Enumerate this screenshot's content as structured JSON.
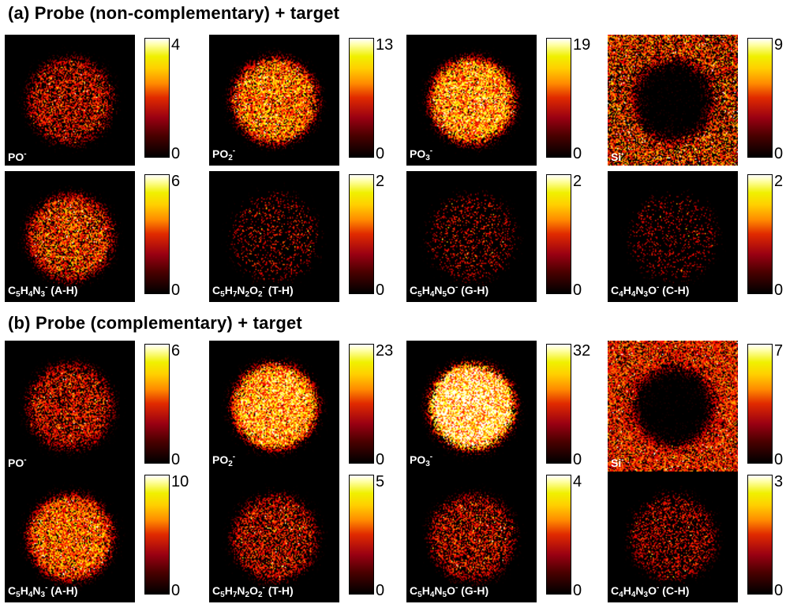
{
  "sections": [
    {
      "title": "(a) Probe (non-complementary) + target",
      "rows": [
        [
          {
            "label_html": "PO<sup>-</sup>",
            "max": "4",
            "min": "0",
            "pattern": "disk",
            "intensity": 0.45,
            "density": 0.55
          },
          {
            "label_html": "PO<sub>2</sub><sup>-</sup>",
            "max": "13",
            "min": "0",
            "pattern": "disk",
            "intensity": 0.65,
            "density": 0.85
          },
          {
            "label_html": "PO<sub>3</sub><sup>-</sup>",
            "max": "19",
            "min": "0",
            "pattern": "disk",
            "intensity": 0.72,
            "density": 0.92
          },
          {
            "label_html": "Si<sup>-</sup>",
            "max": "9",
            "min": "0",
            "pattern": "ring",
            "intensity": 0.55,
            "density": 0.6
          }
        ],
        [
          {
            "label_html": "C<sub>5</sub>H<sub>4</sub>N<sub>3</sub><sup>-</sup> (A-H)",
            "max": "6",
            "min": "0",
            "pattern": "disk",
            "intensity": 0.55,
            "density": 0.7
          },
          {
            "label_html": "C<sub>5</sub>H<sub>7</sub>N<sub>2</sub>O<sub>2</sub><sup>-</sup> (T-H)",
            "max": "2",
            "min": "0",
            "pattern": "disk",
            "intensity": 0.4,
            "density": 0.18
          },
          {
            "label_html": "C<sub>5</sub>H<sub>4</sub>N<sub>5</sub>O<sup>-</sup> (G-H)",
            "max": "2",
            "min": "0",
            "pattern": "disk",
            "intensity": 0.4,
            "density": 0.2
          },
          {
            "label_html": "C<sub>4</sub>H<sub>4</sub>N<sub>3</sub>O<sup>-</sup> (C-H)",
            "max": "2",
            "min": "0",
            "pattern": "disk",
            "intensity": 0.35,
            "density": 0.14
          }
        ]
      ]
    },
    {
      "title": "(b) Probe (complementary) + target",
      "rows": [
        [
          {
            "label_html": "PO<sup>-</sup>",
            "max": "6",
            "min": "0",
            "pattern": "disk",
            "intensity": 0.45,
            "density": 0.6
          },
          {
            "label_html": "PO<sub>2</sub><sup>-</sup>",
            "max": "23",
            "min": "0",
            "pattern": "disk",
            "intensity": 0.75,
            "density": 0.95
          },
          {
            "label_html": "PO<sub>3</sub><sup>-</sup>",
            "max": "32",
            "min": "0",
            "pattern": "disk",
            "intensity": 0.95,
            "density": 1.0
          },
          {
            "label_html": "Si<sup>-</sup>",
            "max": "7",
            "min": "0",
            "pattern": "ring",
            "intensity": 0.5,
            "density": 0.75
          }
        ],
        [
          {
            "label_html": "C<sub>5</sub>H<sub>4</sub>N<sub>3</sub><sup>-</sup> (A-H)",
            "max": "10",
            "min": "0",
            "pattern": "disk",
            "intensity": 0.6,
            "density": 0.85
          },
          {
            "label_html": "C<sub>5</sub>H<sub>7</sub>N<sub>2</sub>O<sub>2</sub><sup>-</sup> (T-H)",
            "max": "5",
            "min": "0",
            "pattern": "disk",
            "intensity": 0.45,
            "density": 0.55
          },
          {
            "label_html": "C<sub>5</sub>H<sub>4</sub>N<sub>5</sub>O<sup>-</sup> (G-H)",
            "max": "4",
            "min": "0",
            "pattern": "disk",
            "intensity": 0.45,
            "density": 0.5
          },
          {
            "label_html": "C<sub>4</sub>H<sub>4</sub>N<sub>3</sub>O<sup>-</sup> (C-H)",
            "max": "3",
            "min": "0",
            "pattern": "disk",
            "intensity": 0.4,
            "density": 0.35
          }
        ]
      ]
    }
  ],
  "colors": {
    "map_background": "#000000",
    "label_text": "#ffffff"
  },
  "colormap": "hot (black-red-yellow-white)"
}
